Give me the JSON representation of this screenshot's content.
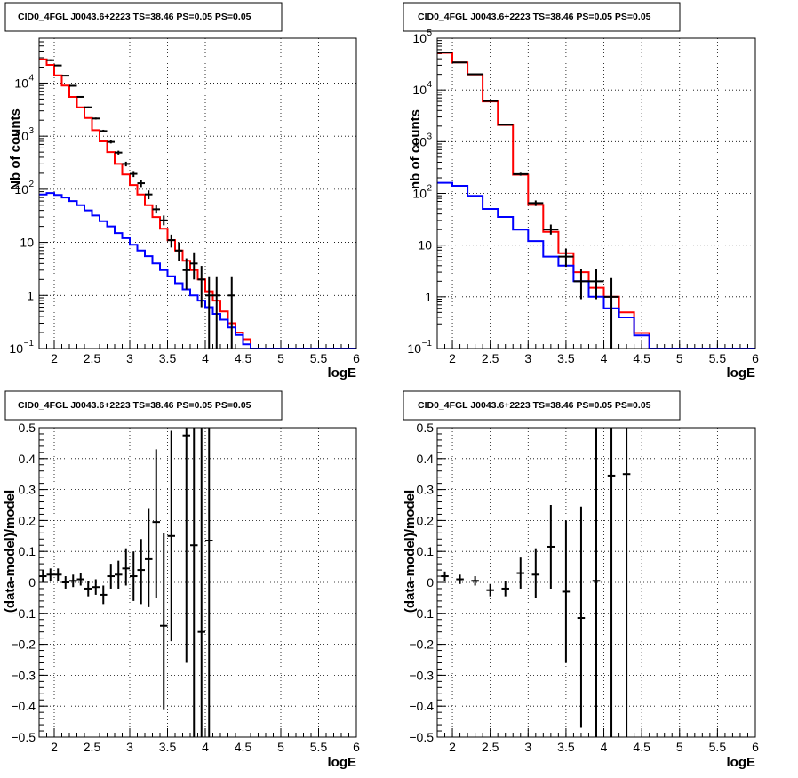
{
  "panels_title": "CID0_4FGL J0043.6+2223 TS=38.46 PS=0.05 PS=0.05",
  "chart_data": [
    {
      "id": "top-left",
      "type": "step-histogram-with-errorbars",
      "title": "CID0_4FGL J0043.6+2223 TS=38.46 PS=0.05 PS=0.05",
      "xlabel": "logE",
      "ylabel": "Nb of counts",
      "xlim": [
        1.8,
        6.0
      ],
      "ylim": [
        0.1,
        70000
      ],
      "ylog": true,
      "grid": true,
      "xticks": [
        "2",
        "2.5",
        "3",
        "3.5",
        "4",
        "4.5",
        "5",
        "5.5",
        "6"
      ],
      "yticks": [
        {
          "v": 0.1,
          "label": "10",
          "exp": "−1"
        },
        {
          "v": 1,
          "label": "1",
          "exp": ""
        },
        {
          "v": 10,
          "label": "10",
          "exp": ""
        },
        {
          "v": 100,
          "label": "10",
          "exp": "2"
        },
        {
          "v": 1000,
          "label": "10",
          "exp": "3"
        },
        {
          "v": 10000,
          "label": "10",
          "exp": "4"
        }
      ],
      "bin_edges": [
        1.8,
        1.9,
        2.0,
        2.1,
        2.2,
        2.3,
        2.4,
        2.5,
        2.6,
        2.7,
        2.8,
        2.9,
        3.0,
        3.1,
        3.2,
        3.3,
        3.4,
        3.5,
        3.6,
        3.7,
        3.8,
        3.9,
        4.0,
        4.1,
        4.2,
        4.3,
        4.4,
        4.5,
        4.6,
        4.7,
        4.8,
        4.9,
        5.0,
        5.1,
        5.2,
        5.3,
        5.4,
        5.5,
        5.6,
        5.7,
        5.8,
        5.9,
        6.0
      ],
      "series": [
        {
          "color": "#ff0000",
          "values": [
            28000,
            22000,
            14000,
            9000,
            5500,
            3500,
            2200,
            1300,
            800,
            500,
            300,
            190,
            120,
            80,
            50,
            30,
            18,
            11,
            7,
            4.5,
            3,
            2,
            1.2,
            0.8,
            0.5,
            0.3,
            0.2,
            0.15,
            0.1,
            0.1,
            0.1,
            0.1,
            0.1,
            0.1,
            0.1,
            0.1,
            0.1,
            0.1,
            0.1,
            0.1,
            0.1,
            0.1
          ]
        },
        {
          "color": "#0000ff",
          "values": [
            80,
            85,
            78,
            70,
            60,
            50,
            40,
            32,
            25,
            20,
            15,
            12,
            9,
            7,
            5.5,
            4,
            3,
            2.3,
            1.7,
            1.3,
            1,
            0.8,
            0.6,
            0.45,
            0.35,
            0.25,
            0.18,
            0.12,
            0.1,
            0.1,
            0.1,
            0.1,
            0.1,
            0.1,
            0.1,
            0.1,
            0.1,
            0.1,
            0.1,
            0.1,
            0.1,
            0.1
          ]
        }
      ],
      "points": [
        {
          "x": 1.95,
          "y": 27000,
          "lo": 26000,
          "hi": 28000
        },
        {
          "x": 2.05,
          "y": 21500,
          "lo": 20800,
          "hi": 22200
        },
        {
          "x": 2.15,
          "y": 13800,
          "lo": 13400,
          "hi": 14200
        },
        {
          "x": 2.25,
          "y": 8900,
          "lo": 8600,
          "hi": 9200
        },
        {
          "x": 2.35,
          "y": 5500,
          "lo": 5300,
          "hi": 5700
        },
        {
          "x": 2.45,
          "y": 3500,
          "lo": 3400,
          "hi": 3620
        },
        {
          "x": 2.55,
          "y": 2150,
          "lo": 2060,
          "hi": 2240
        },
        {
          "x": 2.65,
          "y": 1250,
          "lo": 1180,
          "hi": 1320
        },
        {
          "x": 2.75,
          "y": 780,
          "lo": 730,
          "hi": 830
        },
        {
          "x": 2.85,
          "y": 490,
          "lo": 450,
          "hi": 530
        },
        {
          "x": 2.95,
          "y": 300,
          "lo": 270,
          "hi": 330
        },
        {
          "x": 3.05,
          "y": 195,
          "lo": 170,
          "hi": 220
        },
        {
          "x": 3.15,
          "y": 130,
          "lo": 110,
          "hi": 150
        },
        {
          "x": 3.25,
          "y": 80,
          "lo": 65,
          "hi": 95
        },
        {
          "x": 3.35,
          "y": 42,
          "lo": 35,
          "hi": 50
        },
        {
          "x": 3.45,
          "y": 26,
          "lo": 21,
          "hi": 32
        },
        {
          "x": 3.55,
          "y": 11,
          "lo": 8,
          "hi": 14
        },
        {
          "x": 3.65,
          "y": 7,
          "lo": 4.5,
          "hi": 10
        },
        {
          "x": 3.75,
          "y": 3,
          "lo": 1.3,
          "hi": 5
        },
        {
          "x": 3.85,
          "y": 4,
          "lo": 2,
          "hi": 6.5
        },
        {
          "x": 3.95,
          "y": 2,
          "lo": 0.6,
          "hi": 3.6
        },
        {
          "x": 4.05,
          "y": 1,
          "lo": 0.1,
          "hi": 2.3
        },
        {
          "x": 4.15,
          "y": 1,
          "lo": 0.1,
          "hi": 2.3
        },
        {
          "x": 4.35,
          "y": 1,
          "lo": 0.1,
          "hi": 2.3
        }
      ]
    },
    {
      "id": "top-right",
      "type": "step-histogram-with-errorbars",
      "title": "CID0_4FGL J0043.6+2223 TS=38.46 PS=0.05 PS=0.05",
      "xlabel": "logE",
      "ylabel": "nb of counts",
      "xlim": [
        1.8,
        6.0
      ],
      "ylim": [
        0.1,
        100000
      ],
      "ylog": true,
      "grid": true,
      "xticks": [
        "2",
        "2.5",
        "3",
        "3.5",
        "4",
        "4.5",
        "5",
        "5.5",
        "6"
      ],
      "yticks": [
        {
          "v": 0.1,
          "label": "10",
          "exp": "−1"
        },
        {
          "v": 1,
          "label": "1",
          "exp": ""
        },
        {
          "v": 10,
          "label": "10",
          "exp": ""
        },
        {
          "v": 100,
          "label": "10",
          "exp": "2"
        },
        {
          "v": 1000,
          "label": "10",
          "exp": "3"
        },
        {
          "v": 10000,
          "label": "10",
          "exp": "4"
        },
        {
          "v": 100000,
          "label": "10",
          "exp": "5"
        }
      ],
      "bin_edges": [
        1.8,
        2.0,
        2.2,
        2.4,
        2.6,
        2.8,
        3.0,
        3.2,
        3.4,
        3.6,
        3.8,
        4.0,
        4.2,
        4.4,
        4.6,
        4.8,
        5.0,
        5.2,
        5.4,
        5.6,
        5.8,
        6.0
      ],
      "series": [
        {
          "color": "#ff0000",
          "values": [
            52000,
            34000,
            20000,
            6000,
            2100,
            230,
            60,
            18,
            7,
            3,
            1.5,
            1,
            0.5,
            0.2,
            0.1,
            0.1,
            0.1,
            0.1,
            0.1,
            0.1,
            0.1
          ]
        },
        {
          "color": "#0000ff",
          "values": [
            160,
            140,
            90,
            50,
            35,
            20,
            12,
            6,
            4,
            2,
            1,
            0.6,
            0.4,
            0.18,
            0.1,
            0.1,
            0.1,
            0.1,
            0.1,
            0.1,
            0.1
          ]
        }
      ],
      "points": [
        {
          "x": 1.9,
          "y": 53000,
          "lo": 52000,
          "hi": 54000
        },
        {
          "x": 2.1,
          "y": 34000,
          "lo": 33400,
          "hi": 34600
        },
        {
          "x": 2.3,
          "y": 20100,
          "lo": 19700,
          "hi": 20500
        },
        {
          "x": 2.5,
          "y": 6100,
          "lo": 5950,
          "hi": 6250
        },
        {
          "x": 2.7,
          "y": 2130,
          "lo": 2060,
          "hi": 2200
        },
        {
          "x": 2.9,
          "y": 235,
          "lo": 220,
          "hi": 250
        },
        {
          "x": 3.1,
          "y": 65,
          "lo": 57,
          "hi": 73
        },
        {
          "x": 3.3,
          "y": 20,
          "lo": 16,
          "hi": 25
        },
        {
          "x": 3.5,
          "y": 6,
          "lo": 3.8,
          "hi": 8.5
        },
        {
          "x": 3.7,
          "y": 2,
          "lo": 0.9,
          "hi": 3.5
        },
        {
          "x": 3.9,
          "y": 2,
          "lo": 0.9,
          "hi": 3.5
        },
        {
          "x": 4.1,
          "y": 1,
          "lo": 0.1,
          "hi": 2.3
        }
      ]
    },
    {
      "id": "bottom-left",
      "type": "scatter-with-errorbars",
      "title": "CID0_4FGL J0043.6+2223 TS=38.46 PS=0.05 PS=0.05",
      "xlabel": "logE",
      "ylabel": "(data-model)/model",
      "xlim": [
        1.8,
        6.0
      ],
      "ylim": [
        -0.5,
        0.5
      ],
      "grid": true,
      "xticks": [
        "2",
        "2.5",
        "3",
        "3.5",
        "4",
        "4.5",
        "5",
        "5.5",
        "6"
      ],
      "yticks": [
        "−0.5",
        "−0.4",
        "−0.3",
        "−0.2",
        "−0.1",
        "0",
        "0.1",
        "0.2",
        "0.3",
        "0.4",
        "0.5"
      ],
      "points": [
        {
          "x": 1.85,
          "y": 0.02,
          "lo": 0.0,
          "hi": 0.04
        },
        {
          "x": 1.95,
          "y": 0.025,
          "lo": 0.005,
          "hi": 0.045
        },
        {
          "x": 2.05,
          "y": 0.025,
          "lo": 0.005,
          "hi": 0.045
        },
        {
          "x": 2.15,
          "y": 0.0,
          "lo": -0.02,
          "hi": 0.02
        },
        {
          "x": 2.25,
          "y": 0.005,
          "lo": -0.015,
          "hi": 0.025
        },
        {
          "x": 2.35,
          "y": 0.01,
          "lo": -0.01,
          "hi": 0.03
        },
        {
          "x": 2.45,
          "y": -0.02,
          "lo": -0.045,
          "hi": 0.005
        },
        {
          "x": 2.55,
          "y": -0.015,
          "lo": -0.04,
          "hi": 0.01
        },
        {
          "x": 2.65,
          "y": -0.04,
          "lo": -0.07,
          "hi": -0.01
        },
        {
          "x": 2.75,
          "y": 0.02,
          "lo": -0.02,
          "hi": 0.06
        },
        {
          "x": 2.85,
          "y": 0.025,
          "lo": -0.02,
          "hi": 0.07
        },
        {
          "x": 2.95,
          "y": 0.045,
          "lo": -0.01,
          "hi": 0.11
        },
        {
          "x": 3.05,
          "y": 0.02,
          "lo": -0.06,
          "hi": 0.1
        },
        {
          "x": 3.15,
          "y": 0.04,
          "lo": -0.07,
          "hi": 0.14
        },
        {
          "x": 3.25,
          "y": 0.075,
          "lo": -0.08,
          "hi": 0.24
        },
        {
          "x": 3.35,
          "y": 0.195,
          "lo": -0.05,
          "hi": 0.43
        },
        {
          "x": 3.45,
          "y": -0.14,
          "lo": -0.41,
          "hi": 0.16
        },
        {
          "x": 3.55,
          "y": 0.15,
          "lo": -0.19,
          "hi": 0.49
        },
        {
          "x": 3.75,
          "y": 0.475,
          "lo": -0.26,
          "hi": 0.5
        },
        {
          "x": 3.85,
          "y": 0.12,
          "lo": -0.5,
          "hi": 0.5
        },
        {
          "x": 3.95,
          "y": -0.16,
          "lo": -0.5,
          "hi": 0.5
        },
        {
          "x": 4.05,
          "y": 0.135,
          "lo": -0.5,
          "hi": 0.5
        }
      ]
    },
    {
      "id": "bottom-right",
      "type": "scatter-with-errorbars",
      "title": "CID0_4FGL J0043.6+2223 TS=38.46 PS=0.05 PS=0.05",
      "xlabel": "logE",
      "ylabel": "(data-model)/model",
      "xlim": [
        1.8,
        6.0
      ],
      "ylim": [
        -0.5,
        0.5
      ],
      "grid": true,
      "xticks": [
        "2",
        "2.5",
        "3",
        "3.5",
        "4",
        "4.5",
        "5",
        "5.5",
        "6"
      ],
      "yticks": [
        "−0.5",
        "−0.4",
        "−0.3",
        "−0.2",
        "−0.1",
        "0",
        "0.1",
        "0.2",
        "0.3",
        "0.4",
        "0.5"
      ],
      "points": [
        {
          "x": 1.9,
          "y": 0.02,
          "lo": 0.005,
          "hi": 0.035
        },
        {
          "x": 2.1,
          "y": 0.01,
          "lo": -0.005,
          "hi": 0.025
        },
        {
          "x": 2.3,
          "y": 0.005,
          "lo": -0.01,
          "hi": 0.02
        },
        {
          "x": 2.5,
          "y": -0.025,
          "lo": -0.045,
          "hi": -0.005
        },
        {
          "x": 2.7,
          "y": -0.02,
          "lo": -0.045,
          "hi": 0.005
        },
        {
          "x": 2.9,
          "y": 0.03,
          "lo": -0.02,
          "hi": 0.08
        },
        {
          "x": 3.1,
          "y": 0.025,
          "lo": -0.05,
          "hi": 0.11
        },
        {
          "x": 3.3,
          "y": 0.115,
          "lo": -0.02,
          "hi": 0.25
        },
        {
          "x": 3.5,
          "y": -0.03,
          "lo": -0.26,
          "hi": 0.2
        },
        {
          "x": 3.7,
          "y": -0.115,
          "lo": -0.47,
          "hi": 0.245
        },
        {
          "x": 3.9,
          "y": 0.005,
          "lo": -0.5,
          "hi": 0.5
        },
        {
          "x": 4.1,
          "y": 0.345,
          "lo": -0.5,
          "hi": 0.5
        },
        {
          "x": 4.3,
          "y": 0.35,
          "lo": -0.5,
          "hi": 0.5
        }
      ]
    }
  ]
}
